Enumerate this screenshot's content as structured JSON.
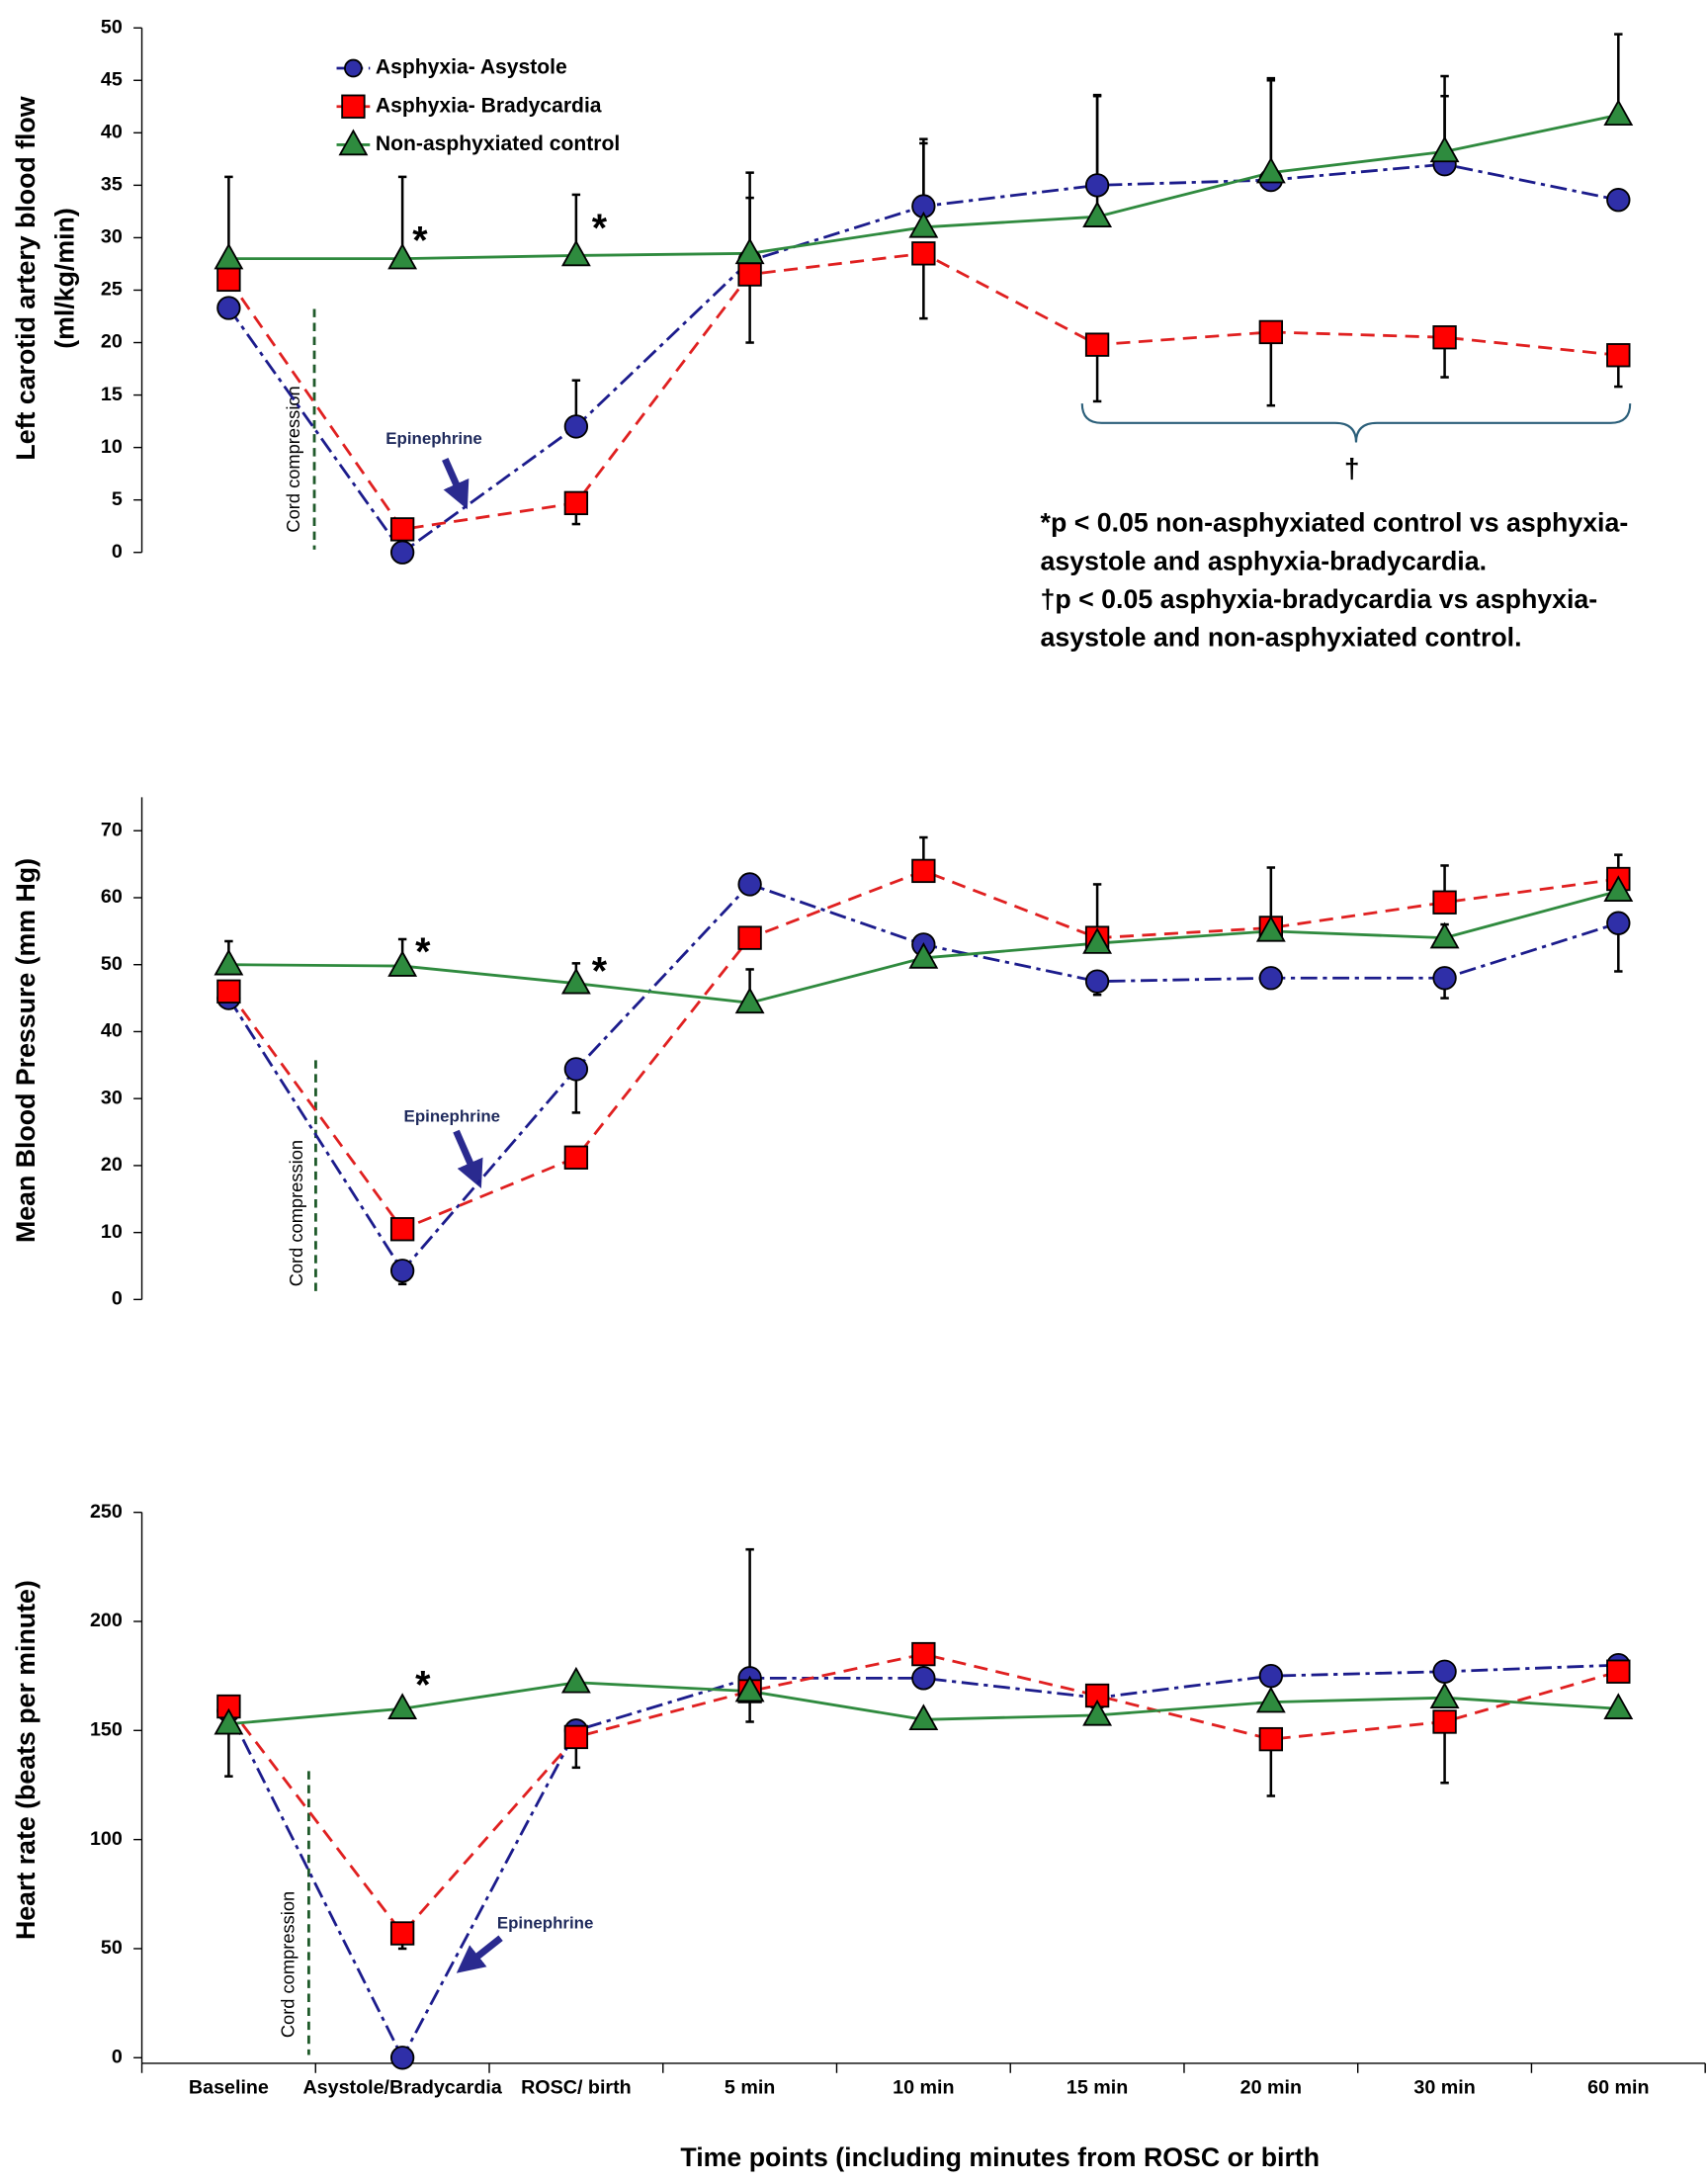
{
  "chart_data": [
    {
      "type": "line",
      "ylabel": [
        "Left carotid artery blood flow",
        "(ml/kg/min)"
      ],
      "ylim": [
        0,
        50
      ],
      "yticks": [
        0,
        5,
        10,
        15,
        20,
        25,
        30,
        35,
        40,
        45,
        50
      ],
      "legend": "upper left",
      "series": [
        {
          "name": "Asphyxia- Asystole",
          "color": "#2f2fa8",
          "line_color": "#1c1c8c",
          "marker": "circle",
          "line_style": "dashdot",
          "error_side": "up",
          "values": [
            23.3,
            0,
            12,
            27.8,
            33,
            35,
            35.5,
            37,
            33.6
          ],
          "errors": [
            0,
            0,
            4.4,
            6,
            6,
            8.5,
            9.5,
            6.5,
            0
          ]
        },
        {
          "name": "Asphyxia- Bradycardia",
          "color": "#ff0000",
          "line_color": "#e02020",
          "marker": "square",
          "line_style": "dashed",
          "error_side": "down",
          "values": [
            26,
            2.2,
            4.7,
            26.5,
            28.5,
            19.8,
            21,
            20.5,
            18.8
          ],
          "errors": [
            1,
            0.5,
            2,
            6.5,
            6.2,
            5.4,
            7,
            3.8,
            3
          ]
        },
        {
          "name": "Non-asphyxiated control",
          "color": "#2e8b3e",
          "line_color": "#2f8a3e",
          "marker": "triangle",
          "line_style": "solid",
          "error_side": "up",
          "values": [
            28,
            28,
            28.3,
            28.5,
            31,
            32,
            36.2,
            38.2,
            41.7
          ],
          "errors": [
            7.8,
            7.8,
            5.8,
            7.7,
            8.4,
            11.6,
            9,
            7.2,
            7.7
          ]
        }
      ],
      "annotations": {
        "cord_compression": "Cord compression",
        "epinephrine": "Epinephrine",
        "significance": [
          "*",
          "*"
        ],
        "bracket_label": "†",
        "footnote": [
          "*p < 0.05 non-asphyxiated control vs asphyxia-",
          "asystole and asphyxia-bradycardia.",
          "†p < 0.05 asphyxia-bradycardia vs asphyxia-",
          "asystole and non-asphyxiated control."
        ]
      }
    },
    {
      "type": "line",
      "ylabel": [
        "Mean Blood Pressure  (mm Hg)"
      ],
      "ylim": [
        0,
        75
      ],
      "yticks": [
        0,
        10,
        20,
        30,
        40,
        50,
        60,
        70
      ],
      "series": [
        {
          "color": "#2f2fa8",
          "line_color": "#1c1c8c",
          "marker": "circle",
          "line_style": "dashdot",
          "error_side": "down",
          "values": [
            45,
            4.3,
            34.4,
            62,
            53,
            47.5,
            48,
            48,
            56.2
          ],
          "errors": [
            1.5,
            2,
            6.5,
            0,
            0,
            2,
            0,
            3,
            7.2
          ]
        },
        {
          "color": "#ff0000",
          "line_color": "#e02020",
          "marker": "square",
          "line_style": "dashed",
          "error_side": "up",
          "values": [
            46,
            10.5,
            21.2,
            54,
            64,
            54,
            55.5,
            59.3,
            62.8
          ],
          "errors": [
            0,
            0,
            1,
            0,
            5,
            8,
            9,
            5.5,
            3.6
          ]
        },
        {
          "color": "#2e8b3e",
          "line_color": "#2f8a3e",
          "marker": "triangle",
          "line_style": "solid",
          "error_side": "up",
          "values": [
            50,
            49.8,
            47.2,
            44.3,
            51,
            53.2,
            55,
            54,
            61
          ],
          "errors": [
            3.5,
            4,
            3,
            5,
            0,
            0,
            0,
            2,
            0
          ]
        }
      ],
      "annotations": {
        "cord_compression": "Cord compression",
        "epinephrine": "Epinephrine",
        "significance": [
          "*",
          "*"
        ]
      }
    },
    {
      "type": "line",
      "ylabel": [
        "Heart rate (beats per minute)"
      ],
      "xlabel": "Time points (including minutes from  ROSC or birth",
      "categories": [
        "Baseline",
        "Asystole/Bradycardia",
        "ROSC/ birth",
        "5 min",
        "10 min",
        "15 min",
        "20 min",
        "30 min",
        "60 min"
      ],
      "ylim": [
        0,
        250
      ],
      "yticks": [
        0,
        50,
        100,
        150,
        200,
        250
      ],
      "series": [
        {
          "color": "#2f2fa8",
          "line_color": "#1c1c8c",
          "marker": "circle",
          "line_style": "dashdot",
          "error_side": "up",
          "values": [
            159,
            0,
            150,
            174,
            174,
            165,
            175,
            177,
            180
          ],
          "errors": [
            0,
            0,
            0,
            59,
            0,
            0,
            0,
            0,
            0
          ]
        },
        {
          "color": "#ff0000",
          "line_color": "#e02020",
          "marker": "square",
          "line_style": "dashed",
          "error_side": "down",
          "values": [
            161,
            57,
            147,
            168,
            185,
            166,
            146,
            154,
            177
          ],
          "errors": [
            0,
            7,
            14,
            14,
            10,
            0,
            26,
            28,
            0
          ]
        },
        {
          "color": "#2e8b3e",
          "line_color": "#2f8a3e",
          "marker": "triangle",
          "line_style": "solid",
          "error_side": "down",
          "values": [
            153,
            160,
            172,
            168,
            155,
            157,
            163,
            165,
            160
          ],
          "errors": [
            24,
            0,
            0,
            0,
            0,
            0,
            0,
            0,
            0
          ]
        }
      ],
      "annotations": {
        "cord_compression": "Cord compression",
        "epinephrine": "Epinephrine",
        "significance": [
          "*"
        ]
      }
    }
  ]
}
